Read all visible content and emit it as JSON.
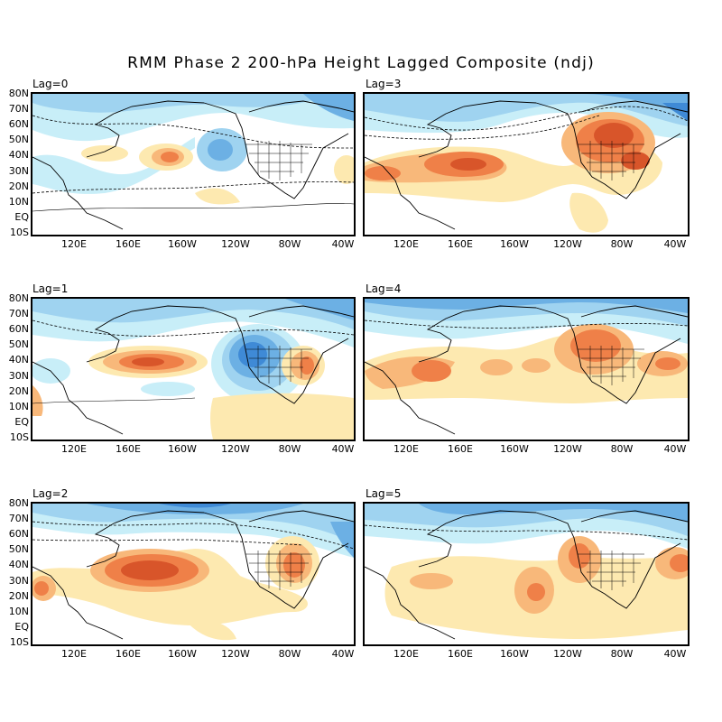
{
  "title": "RMM Phase 2 200-hPa Height Lagged Composite (ndj)",
  "lat_ticks": [
    "80N",
    "70N",
    "60N",
    "50N",
    "40N",
    "30N",
    "20N",
    "10N",
    "EQ",
    "10S"
  ],
  "lon_ticks": [
    "120E",
    "160E",
    "160W",
    "120W",
    "80W",
    "40W"
  ],
  "colors": {
    "neg_1": "#c8eef8",
    "neg_2": "#9fd3f0",
    "neg_3": "#6cb0e4",
    "neg_4": "#3f8ad6",
    "pos_1": "#fde9b0",
    "pos_2": "#f8b87a",
    "pos_3": "#ef8048",
    "pos_4": "#d8552a"
  },
  "panels": [
    {
      "label": "Lag=0"
    },
    {
      "label": "Lag=3"
    },
    {
      "label": "Lag=1"
    },
    {
      "label": "Lag=4"
    },
    {
      "label": "Lag=2"
    },
    {
      "label": "Lag=5"
    }
  ]
}
